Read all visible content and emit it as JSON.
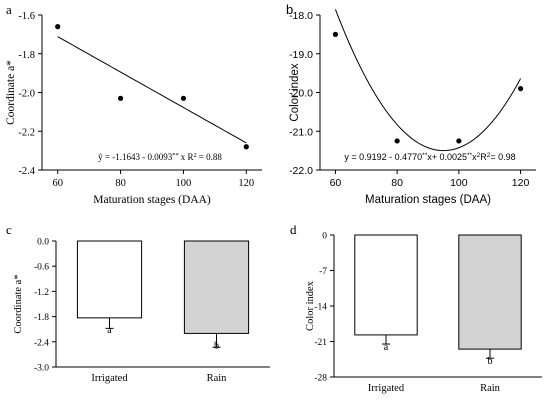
{
  "chart_data": [
    {
      "panel": "a",
      "type": "scatter",
      "xlabel": "Maturation stages (DAA)",
      "ylabel": "Coordinate a*",
      "xlim": [
        55,
        125
      ],
      "ylim": [
        -2.4,
        -1.6
      ],
      "xticks": [
        "60",
        "80",
        "100",
        "120"
      ],
      "yticks": [
        "-1.6",
        "-1.8",
        "-2.0",
        "-2.2",
        "-2.4"
      ],
      "points": [
        {
          "x": 60,
          "y": -1.66
        },
        {
          "x": 80,
          "y": -2.03
        },
        {
          "x": 100,
          "y": -2.03
        },
        {
          "x": 120,
          "y": -2.28
        }
      ],
      "fit": {
        "type": "linear",
        "intercept": -1.1643,
        "slope": -0.0093
      },
      "equation": "ŷ = -1.1643 - 0.0093",
      "equation_sup": "**",
      "equation_tail": "x R",
      "equation_sup2": "2",
      "equation_end": "= 0.88"
    },
    {
      "panel": "b",
      "type": "scatter",
      "xlabel": "Maturation stages (DAA)",
      "ylabel": "Color index",
      "xlim": [
        55,
        125
      ],
      "ylim": [
        -22.0,
        -18.0
      ],
      "xticks": [
        "60",
        "80",
        "100",
        "120"
      ],
      "yticks": [
        "-18.0",
        "-19.0",
        "-20.0",
        "-21.0",
        "-22.0"
      ],
      "points": [
        {
          "x": 60,
          "y": -18.5
        },
        {
          "x": 80,
          "y": -21.25
        },
        {
          "x": 100,
          "y": -21.25
        },
        {
          "x": 120,
          "y": -19.9
        }
      ],
      "fit": {
        "type": "quadratic",
        "a": 0.9192,
        "b": -0.477,
        "c": 0.0025
      },
      "equation": "y = 0.9192 - 0.4770",
      "equation_sup": "**",
      "equation_mid": "x+ 0.0025",
      "equation_sup2": "**",
      "equation_tail": "x",
      "equation_sup3": "2",
      "equation_r": "R",
      "equation_sup4": "2",
      "equation_end": "= 0.98"
    },
    {
      "panel": "c",
      "type": "bar",
      "categories": [
        "Irrigated",
        "Rain"
      ],
      "values": [
        -1.83,
        -2.2
      ],
      "errors": [
        0.25,
        0.33
      ],
      "letters": [
        "a",
        "b"
      ],
      "colors": [
        "#ffffff",
        "#d3d3d3"
      ],
      "ylabel": "Coordinate a*",
      "ylim": [
        -3.0,
        0.0
      ],
      "yticks": [
        "0.0",
        "-0.6",
        "-1.2",
        "-1.8",
        "-2.4",
        "-3.0"
      ]
    },
    {
      "panel": "d",
      "type": "bar",
      "categories": [
        "Irrigated",
        "Rain"
      ],
      "values": [
        -19.7,
        -22.5
      ],
      "errors": [
        1.8,
        1.8
      ],
      "letters": [
        "a",
        "b"
      ],
      "colors": [
        "#ffffff",
        "#d3d3d3"
      ],
      "ylabel": "Color index",
      "ylim": [
        -28,
        0
      ],
      "yticks": [
        "0",
        "-7",
        "-14",
        "-21",
        "-28"
      ]
    }
  ]
}
